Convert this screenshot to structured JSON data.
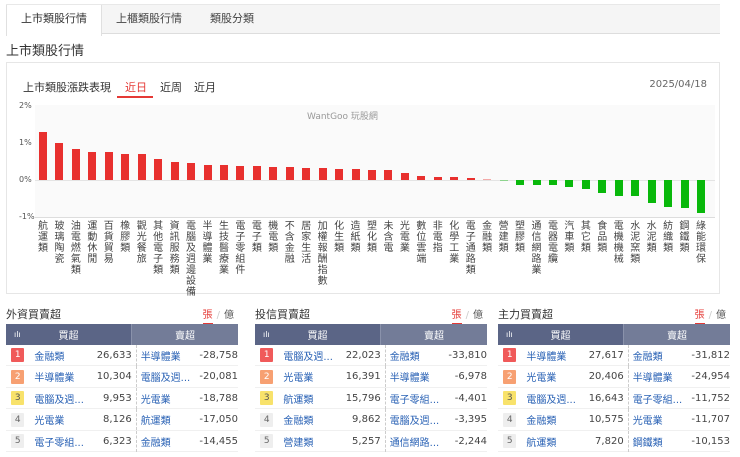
{
  "tabs": [
    {
      "label": "上市類股行情",
      "active": true
    },
    {
      "label": "上櫃類股行情",
      "active": false
    },
    {
      "label": "類股分類",
      "active": false
    }
  ],
  "page_title": "上市類股行情",
  "chart_panel": {
    "title": "上市類股漲跌表現",
    "period_tabs": [
      {
        "label": "近日",
        "active": true
      },
      {
        "label": "近周",
        "active": false
      },
      {
        "label": "近月",
        "active": false
      }
    ],
    "date": "2025/04/18",
    "watermark": "WantGoo 玩股網",
    "colors": {
      "up": "#e8302e",
      "down": "#09b80b"
    }
  },
  "chart_data": {
    "type": "bar",
    "title": "上市類股漲跌表現",
    "xlabel": "",
    "ylabel": "",
    "ylim": [
      -1,
      2
    ],
    "yticks": [
      "2%",
      "1%",
      "0%",
      "-1%"
    ],
    "categories": [
      "航運類",
      "玻璃陶瓷",
      "油電燃氣類",
      "運動休閒",
      "百貨貿易",
      "橡膠類",
      "觀光餐旅",
      "其他電子類",
      "資訊服務類",
      "電腦及週邊設備",
      "半導體業",
      "生技醫療業",
      "電子零組件",
      "電子類",
      "機電類",
      "不含金融",
      "居家生活",
      "加權報酬指數",
      "化生類",
      "造紙類",
      "塑化類",
      "未含電",
      "光電業",
      "數位雲端",
      "非電指",
      "化學工業",
      "電子通路類",
      "金融類",
      "營建類",
      "塑膠類",
      "通信網路業",
      "電器電纜",
      "汽車類",
      "其它類",
      "食品類",
      "電機機械",
      "水泥窯類",
      "水泥類",
      "紡織類",
      "鋼鐵類",
      "綠能環保"
    ],
    "values": [
      1.3,
      1.0,
      0.84,
      0.76,
      0.75,
      0.71,
      0.69,
      0.56,
      0.5,
      0.46,
      0.4,
      0.4,
      0.38,
      0.37,
      0.36,
      0.35,
      0.33,
      0.32,
      0.3,
      0.3,
      0.28,
      0.28,
      0.18,
      0.1,
      0.07,
      0.07,
      0.05,
      0.01,
      -0.02,
      -0.13,
      -0.13,
      -0.13,
      -0.2,
      -0.24,
      -0.36,
      -0.42,
      -0.42,
      -0.62,
      -0.72,
      -0.76,
      -0.9
    ]
  },
  "tables": [
    {
      "title": "外資買賣超",
      "unit_on": "張",
      "unit_off": "億",
      "buy_header": "買超",
      "sell_header": "賣超",
      "rows": [
        {
          "rank": "1",
          "buy_name": "金融類",
          "buy_val": "26,633",
          "sell_name": "半導體業",
          "sell_val": "-28,758"
        },
        {
          "rank": "2",
          "buy_name": "半導體業",
          "buy_val": "10,304",
          "sell_name": "電腦及週...",
          "sell_val": "-20,081"
        },
        {
          "rank": "3",
          "buy_name": "電腦及週...",
          "buy_val": "9,953",
          "sell_name": "光電業",
          "sell_val": "-18,788"
        },
        {
          "rank": "4",
          "buy_name": "光電業",
          "buy_val": "8,126",
          "sell_name": "航運類",
          "sell_val": "-17,050"
        },
        {
          "rank": "5",
          "buy_name": "電子零組...",
          "buy_val": "6,323",
          "sell_name": "金融類",
          "sell_val": "-14,455"
        }
      ]
    },
    {
      "title": "投信買賣超",
      "unit_on": "張",
      "unit_off": "億",
      "buy_header": "買超",
      "sell_header": "賣超",
      "rows": [
        {
          "rank": "1",
          "buy_name": "電腦及週...",
          "buy_val": "22,023",
          "sell_name": "金融類",
          "sell_val": "-33,810"
        },
        {
          "rank": "2",
          "buy_name": "光電業",
          "buy_val": "16,391",
          "sell_name": "半導體業",
          "sell_val": "-6,978"
        },
        {
          "rank": "3",
          "buy_name": "航運類",
          "buy_val": "15,796",
          "sell_name": "電子零組...",
          "sell_val": "-4,401"
        },
        {
          "rank": "4",
          "buy_name": "金融類",
          "buy_val": "9,862",
          "sell_name": "電腦及週...",
          "sell_val": "-3,395"
        },
        {
          "rank": "5",
          "buy_name": "營建類",
          "buy_val": "5,257",
          "sell_name": "通信網路...",
          "sell_val": "-2,244"
        }
      ]
    },
    {
      "title": "主力買賣超",
      "unit_on": "張",
      "unit_off": "億",
      "buy_header": "買超",
      "sell_header": "賣超",
      "rows": [
        {
          "rank": "1",
          "buy_name": "半導體業",
          "buy_val": "27,617",
          "sell_name": "金融類",
          "sell_val": "-31,812"
        },
        {
          "rank": "2",
          "buy_name": "光電業",
          "buy_val": "20,406",
          "sell_name": "半導體業",
          "sell_val": "-24,954"
        },
        {
          "rank": "3",
          "buy_name": "電腦及週...",
          "buy_val": "16,643",
          "sell_name": "電子零組...",
          "sell_val": "-11,752"
        },
        {
          "rank": "4",
          "buy_name": "金融類",
          "buy_val": "10,575",
          "sell_name": "光電業",
          "sell_val": "-11,707"
        },
        {
          "rank": "5",
          "buy_name": "航運類",
          "buy_val": "7,820",
          "sell_name": "鋼鐵類",
          "sell_val": "-10,153"
        }
      ]
    }
  ]
}
